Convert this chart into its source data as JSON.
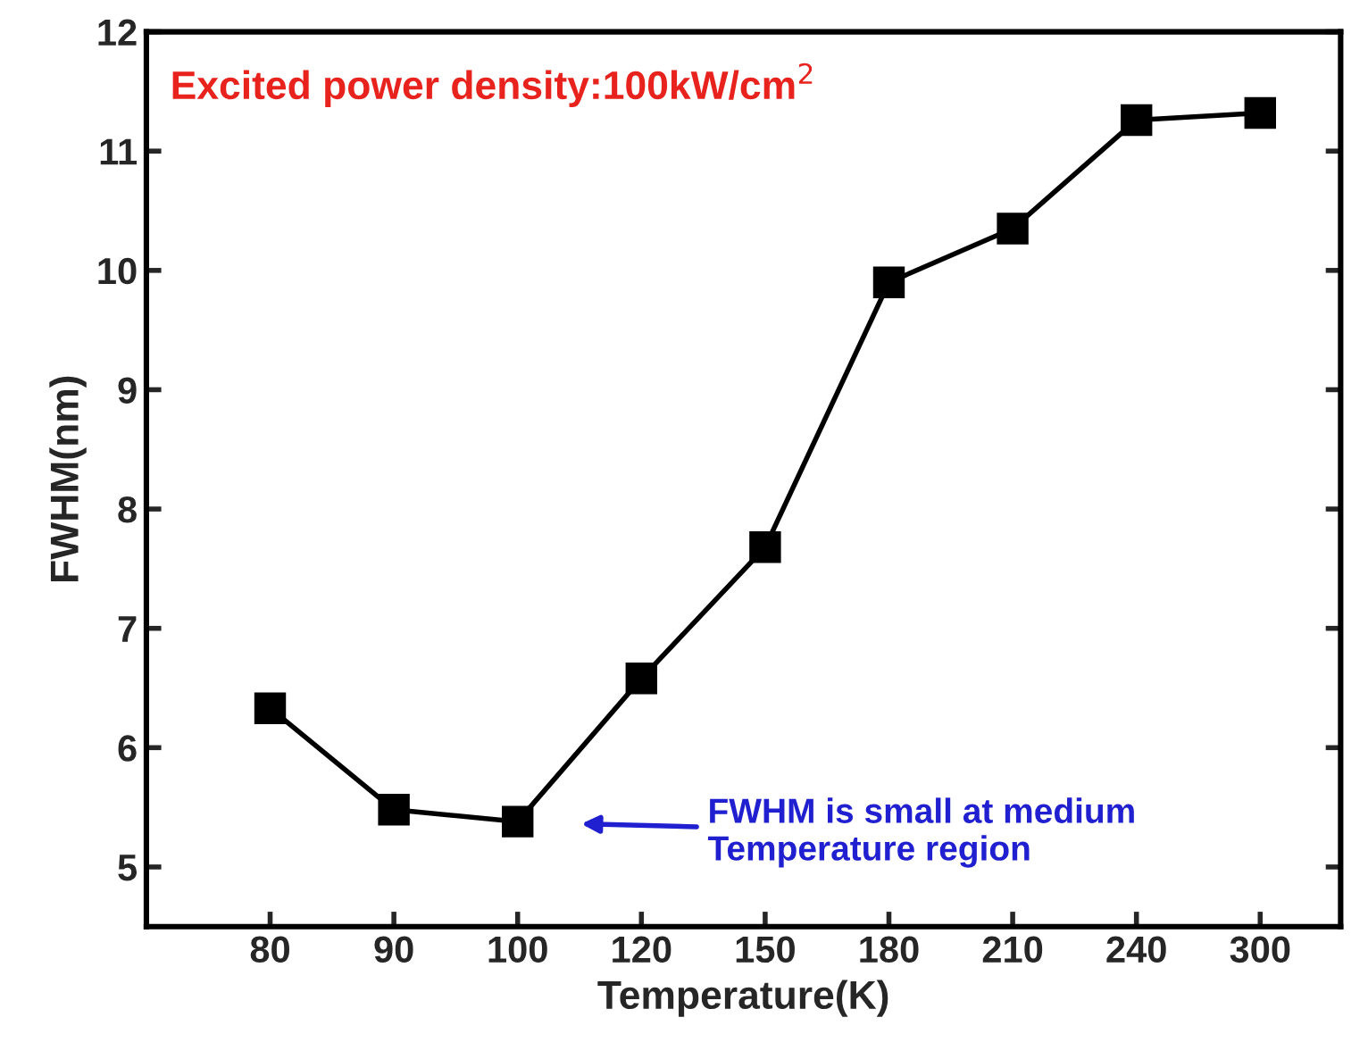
{
  "chart_data": {
    "type": "line",
    "title": "Excited power density:100kW/cm$^{2}$",
    "xlabel": "Temperature(K)",
    "ylabel": "FWHM(nm)",
    "categories": [
      "80",
      "90",
      "100",
      "120",
      "150",
      "180",
      "210",
      "240",
      "300"
    ],
    "series": [
      {
        "color": "#000000",
        "values": [
          6.33,
          5.48,
          5.38,
          6.58,
          7.68,
          9.9,
          10.35,
          11.26,
          11.32
        ]
      }
    ],
    "ylim": [
      4.5,
      12
    ],
    "yticks": [
      5,
      6,
      7,
      8,
      9,
      10,
      11,
      12
    ],
    "marker": "square",
    "line_style": "solid",
    "grid": false,
    "legend": false,
    "annotations": [
      "FWHM is small at medium\nTemperature region"
    ]
  }
}
